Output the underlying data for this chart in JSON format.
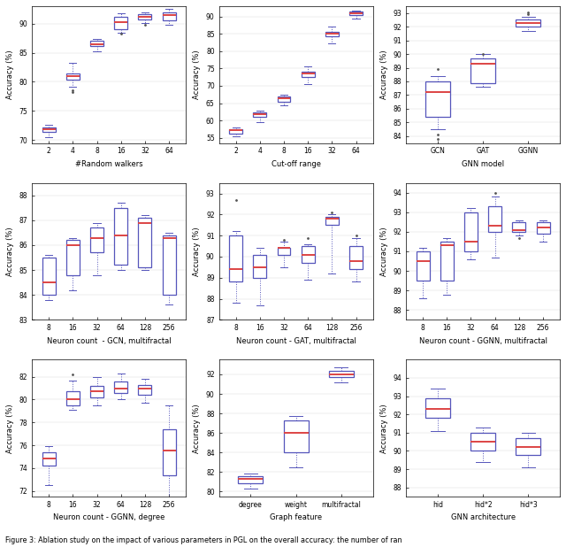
{
  "fig_width": 6.4,
  "fig_height": 6.18,
  "caption": "Figure 3: Ablation study on the impact of various parameters in PGL on the overall accuracy: the number of ran",
  "subplots": [
    {
      "xlabel": "#Random walkers",
      "ylabel": "Accuracy (%)",
      "xlabels": [
        "2",
        "4",
        "8",
        "16",
        "32",
        "64"
      ],
      "ylim": [
        69.5,
        93.0
      ],
      "yticks": [
        70,
        75,
        80,
        85,
        90
      ],
      "boxes": [
        {
          "med": 71.9,
          "q1": 71.4,
          "q3": 72.1,
          "whislo": 70.5,
          "whishi": 72.6,
          "fliers": []
        },
        {
          "med": 81.0,
          "q1": 80.4,
          "q3": 81.5,
          "whislo": 79.2,
          "whishi": 83.2,
          "fliers": [
            78.3,
            78.6
          ]
        },
        {
          "med": 86.5,
          "q1": 86.1,
          "q3": 87.0,
          "whislo": 85.3,
          "whishi": 87.4,
          "fliers": []
        },
        {
          "med": 90.3,
          "q1": 89.0,
          "q3": 91.2,
          "whislo": 88.5,
          "whishi": 91.8,
          "fliers": [
            88.3
          ]
        },
        {
          "med": 91.2,
          "q1": 90.7,
          "q3": 91.6,
          "whislo": 90.1,
          "whishi": 91.9,
          "fliers": [
            89.8
          ]
        },
        {
          "med": 91.4,
          "q1": 90.6,
          "q3": 92.0,
          "whislo": 89.8,
          "whishi": 92.5,
          "fliers": []
        }
      ]
    },
    {
      "xlabel": "Cut-off range",
      "ylabel": "Accuracy (%)",
      "xlabels": [
        "2",
        "4",
        "8",
        "16",
        "32",
        "64"
      ],
      "ylim": [
        53.5,
        93.0
      ],
      "yticks": [
        55,
        60,
        65,
        70,
        75,
        80,
        85,
        90
      ],
      "boxes": [
        {
          "med": 57.1,
          "q1": 56.3,
          "q3": 57.6,
          "whislo": 55.5,
          "whishi": 57.9,
          "fliers": []
        },
        {
          "med": 61.9,
          "q1": 61.1,
          "q3": 62.3,
          "whislo": 59.4,
          "whishi": 62.8,
          "fliers": []
        },
        {
          "med": 66.5,
          "q1": 65.3,
          "q3": 67.0,
          "whislo": 64.5,
          "whishi": 67.5,
          "fliers": []
        },
        {
          "med": 73.5,
          "q1": 72.5,
          "q3": 74.2,
          "whislo": 70.4,
          "whishi": 75.5,
          "fliers": []
        },
        {
          "med": 85.0,
          "q1": 84.3,
          "q3": 85.7,
          "whislo": 82.3,
          "whishi": 87.0,
          "fliers": []
        },
        {
          "med": 91.0,
          "q1": 90.4,
          "q3": 91.4,
          "whislo": 89.3,
          "whishi": 91.7,
          "fliers": []
        }
      ]
    },
    {
      "xlabel": "GNN model",
      "ylabel": "Accuracy (%)",
      "xlabels": [
        "GCN",
        "GAT",
        "GGNN"
      ],
      "ylim": [
        83.5,
        93.5
      ],
      "yticks": [
        84,
        85,
        86,
        87,
        88,
        89,
        90,
        91,
        92,
        93
      ],
      "boxes": [
        {
          "med": 87.2,
          "q1": 85.4,
          "q3": 88.0,
          "whislo": 84.5,
          "whishi": 88.4,
          "fliers": [
            84.1,
            83.8,
            88.9
          ]
        },
        {
          "med": 89.3,
          "q1": 87.9,
          "q3": 89.7,
          "whislo": 87.6,
          "whishi": 90.0,
          "fliers": [
            90.0
          ]
        },
        {
          "med": 92.3,
          "q1": 92.0,
          "q3": 92.5,
          "whislo": 91.7,
          "whishi": 92.7,
          "fliers": [
            92.9,
            93.05
          ]
        }
      ]
    },
    {
      "xlabel": "Neuron count  - GCN, multifractal",
      "ylabel": "Accuracy (%)",
      "xlabels": [
        "8",
        "16",
        "32",
        "64",
        "128",
        "256"
      ],
      "ylim": [
        83.0,
        88.5
      ],
      "yticks": [
        83,
        84,
        85,
        86,
        87,
        88
      ],
      "boxes": [
        {
          "med": 84.5,
          "q1": 84.0,
          "q3": 85.5,
          "whislo": 83.8,
          "whishi": 85.6,
          "fliers": []
        },
        {
          "med": 86.0,
          "q1": 84.8,
          "q3": 86.2,
          "whislo": 84.2,
          "whishi": 86.3,
          "fliers": []
        },
        {
          "med": 86.3,
          "q1": 85.7,
          "q3": 86.7,
          "whislo": 84.8,
          "whishi": 86.9,
          "fliers": []
        },
        {
          "med": 86.4,
          "q1": 85.2,
          "q3": 87.5,
          "whislo": 85.0,
          "whishi": 87.7,
          "fliers": []
        },
        {
          "med": 86.9,
          "q1": 85.1,
          "q3": 87.1,
          "whislo": 85.0,
          "whishi": 87.2,
          "fliers": []
        },
        {
          "med": 86.3,
          "q1": 84.0,
          "q3": 86.4,
          "whislo": 83.6,
          "whishi": 86.5,
          "fliers": []
        }
      ]
    },
    {
      "xlabel": "Neuron count - GAT, multifractal",
      "ylabel": "Accuracy (%)",
      "xlabels": [
        "8",
        "16",
        "32",
        "64",
        "128",
        "256"
      ],
      "ylim": [
        87.0,
        93.5
      ],
      "yticks": [
        87,
        88,
        89,
        90,
        91,
        92,
        93
      ],
      "boxes": [
        {
          "med": 89.4,
          "q1": 88.8,
          "q3": 91.0,
          "whislo": 87.8,
          "whishi": 91.2,
          "fliers": [
            92.7
          ]
        },
        {
          "med": 89.5,
          "q1": 89.0,
          "q3": 90.1,
          "whislo": 87.7,
          "whishi": 90.4,
          "fliers": []
        },
        {
          "med": 90.4,
          "q1": 90.1,
          "q3": 90.4,
          "whislo": 89.5,
          "whishi": 90.7,
          "fliers": [
            90.8
          ]
        },
        {
          "med": 90.1,
          "q1": 89.7,
          "q3": 90.5,
          "whislo": 88.9,
          "whishi": 90.6,
          "fliers": [
            90.9
          ]
        },
        {
          "med": 91.8,
          "q1": 91.5,
          "q3": 91.9,
          "whislo": 89.2,
          "whishi": 92.0,
          "fliers": [
            92.1
          ]
        },
        {
          "med": 89.8,
          "q1": 89.4,
          "q3": 90.5,
          "whislo": 88.8,
          "whishi": 90.9,
          "fliers": [
            91.0
          ]
        }
      ]
    },
    {
      "xlabel": "Neuron count - GGNN, multifractal",
      "ylabel": "Accuracy (%)",
      "xlabels": [
        "8",
        "16",
        "32",
        "64",
        "128",
        "256"
      ],
      "ylim": [
        87.5,
        94.5
      ],
      "yticks": [
        88,
        89,
        90,
        91,
        92,
        93,
        94
      ],
      "boxes": [
        {
          "med": 90.5,
          "q1": 89.5,
          "q3": 91.0,
          "whislo": 88.6,
          "whishi": 91.2,
          "fliers": []
        },
        {
          "med": 91.3,
          "q1": 89.5,
          "q3": 91.5,
          "whislo": 88.8,
          "whishi": 91.7,
          "fliers": []
        },
        {
          "med": 91.5,
          "q1": 91.0,
          "q3": 93.0,
          "whislo": 90.6,
          "whishi": 93.2,
          "fliers": []
        },
        {
          "med": 92.3,
          "q1": 92.0,
          "q3": 93.3,
          "whislo": 90.7,
          "whishi": 93.8,
          "fliers": [
            94.0
          ]
        },
        {
          "med": 92.1,
          "q1": 92.0,
          "q3": 92.5,
          "whislo": 91.8,
          "whishi": 92.6,
          "fliers": [
            91.7
          ]
        },
        {
          "med": 92.2,
          "q1": 91.9,
          "q3": 92.5,
          "whislo": 91.5,
          "whishi": 92.6,
          "fliers": []
        }
      ]
    },
    {
      "xlabel": "Neuron count - GGNN, degree",
      "ylabel": "Accuracy (%)",
      "xlabels": [
        "8",
        "16",
        "32",
        "64",
        "128",
        "256"
      ],
      "ylim": [
        71.5,
        83.5
      ],
      "yticks": [
        72,
        74,
        76,
        78,
        80,
        82
      ],
      "boxes": [
        {
          "med": 74.8,
          "q1": 74.2,
          "q3": 75.4,
          "whislo": 72.5,
          "whishi": 75.9,
          "fliers": []
        },
        {
          "med": 80.0,
          "q1": 79.5,
          "q3": 80.7,
          "whislo": 79.1,
          "whishi": 81.7,
          "fliers": [
            82.2
          ]
        },
        {
          "med": 80.7,
          "q1": 80.2,
          "q3": 81.2,
          "whislo": 79.5,
          "whishi": 82.0,
          "fliers": []
        },
        {
          "med": 81.0,
          "q1": 80.6,
          "q3": 81.6,
          "whislo": 80.0,
          "whishi": 82.3,
          "fliers": []
        },
        {
          "med": 81.0,
          "q1": 80.4,
          "q3": 81.3,
          "whislo": 79.7,
          "whishi": 81.8,
          "fliers": []
        },
        {
          "med": 75.5,
          "q1": 73.4,
          "q3": 77.4,
          "whislo": 71.5,
          "whishi": 79.5,
          "fliers": []
        }
      ]
    },
    {
      "xlabel": "Graph feature",
      "ylabel": "Accuracy (%)",
      "xlabels": [
        "degree",
        "weight",
        "multifractal"
      ],
      "ylim": [
        79.5,
        93.5
      ],
      "yticks": [
        80,
        82,
        84,
        86,
        88,
        90,
        92
      ],
      "boxes": [
        {
          "med": 81.3,
          "q1": 80.9,
          "q3": 81.6,
          "whislo": 80.3,
          "whishi": 81.9,
          "fliers": []
        },
        {
          "med": 86.0,
          "q1": 84.0,
          "q3": 87.3,
          "whislo": 82.5,
          "whishi": 87.7,
          "fliers": []
        },
        {
          "med": 92.0,
          "q1": 91.7,
          "q3": 92.4,
          "whislo": 91.2,
          "whishi": 92.7,
          "fliers": []
        }
      ]
    },
    {
      "xlabel": "GNN architecture",
      "ylabel": "Accuracy (%)",
      "xlabels": [
        "hid",
        "hid*2",
        "hid*3"
      ],
      "ylim": [
        87.5,
        95.0
      ],
      "yticks": [
        88,
        89,
        90,
        91,
        92,
        93,
        94
      ],
      "boxes": [
        {
          "med": 92.3,
          "q1": 91.8,
          "q3": 92.9,
          "whislo": 91.1,
          "whishi": 93.4,
          "fliers": []
        },
        {
          "med": 90.5,
          "q1": 90.0,
          "q3": 91.0,
          "whislo": 89.4,
          "whishi": 91.3,
          "fliers": []
        },
        {
          "med": 90.2,
          "q1": 89.8,
          "q3": 90.7,
          "whislo": 89.1,
          "whishi": 91.0,
          "fliers": []
        }
      ]
    }
  ],
  "box_color": "#5555bb",
  "median_color": "#dd4444",
  "flier_color": "#555555",
  "bg_color": "#ffffff",
  "label_fontsize": 6.0,
  "tick_fontsize": 5.5,
  "caption_fontsize": 5.8
}
